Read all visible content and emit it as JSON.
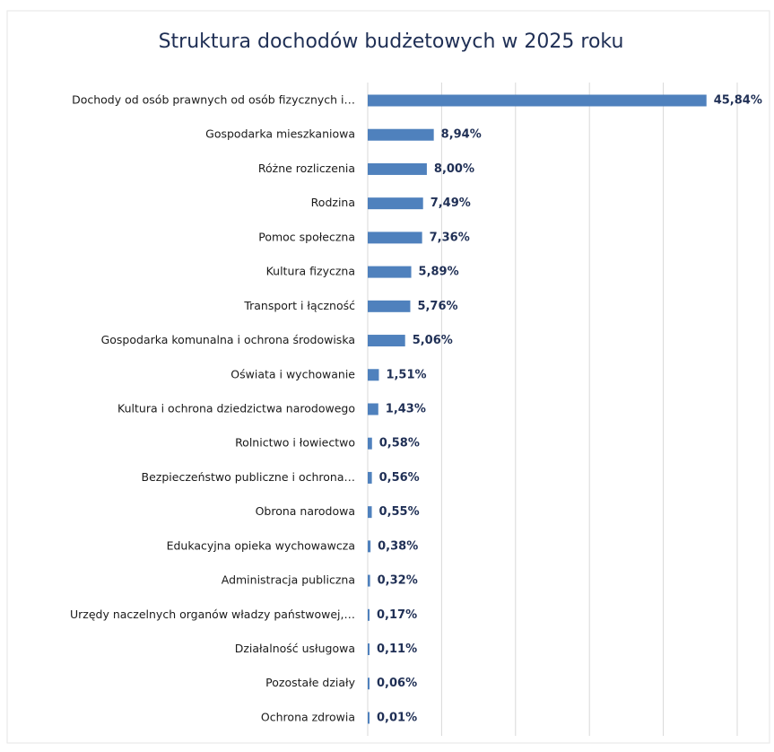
{
  "chart_data": {
    "type": "bar",
    "orientation": "horizontal",
    "title": "Struktura dochodów budżetowych w 2025 roku",
    "categories": [
      "Dochody od osób prawnych od osób fizycznych i…",
      "Gospodarka mieszkaniowa",
      "Różne rozliczenia",
      "Rodzina",
      "Pomoc społeczna",
      "Kultura fizyczna",
      "Transport i łączność",
      "Gospodarka komunalna i ochrona środowiska",
      "Oświata i wychowanie",
      "Kultura i ochrona dziedzictwa narodowego",
      "Rolnictwo i łowiectwo",
      "Bezpieczeństwo publiczne i ochrona…",
      "Obrona narodowa",
      "Edukacyjna opieka wychowawcza",
      "Administracja publiczna",
      "Urzędy naczelnych organów władzy państwowej,…",
      "Działalność usługowa",
      "Pozostałe działy",
      "Ochrona zdrowia"
    ],
    "values": [
      45.84,
      8.94,
      8.0,
      7.49,
      7.36,
      5.89,
      5.76,
      5.06,
      1.51,
      1.43,
      0.58,
      0.56,
      0.55,
      0.38,
      0.32,
      0.17,
      0.11,
      0.06,
      0.01
    ],
    "value_labels": [
      "45,84%",
      "8,94%",
      "8,00%",
      "7,49%",
      "7,36%",
      "5,89%",
      "5,76%",
      "5,06%",
      "1,51%",
      "1,43%",
      "0,58%",
      "0,56%",
      "0,55%",
      "0,38%",
      "0,32%",
      "0,17%",
      "0,11%",
      "0,06%",
      "0,01%"
    ],
    "color": "#4f81bd",
    "xlim": [
      0,
      50
    ],
    "xticks": [
      0,
      10,
      20,
      30,
      40,
      50
    ],
    "grid": true
  }
}
